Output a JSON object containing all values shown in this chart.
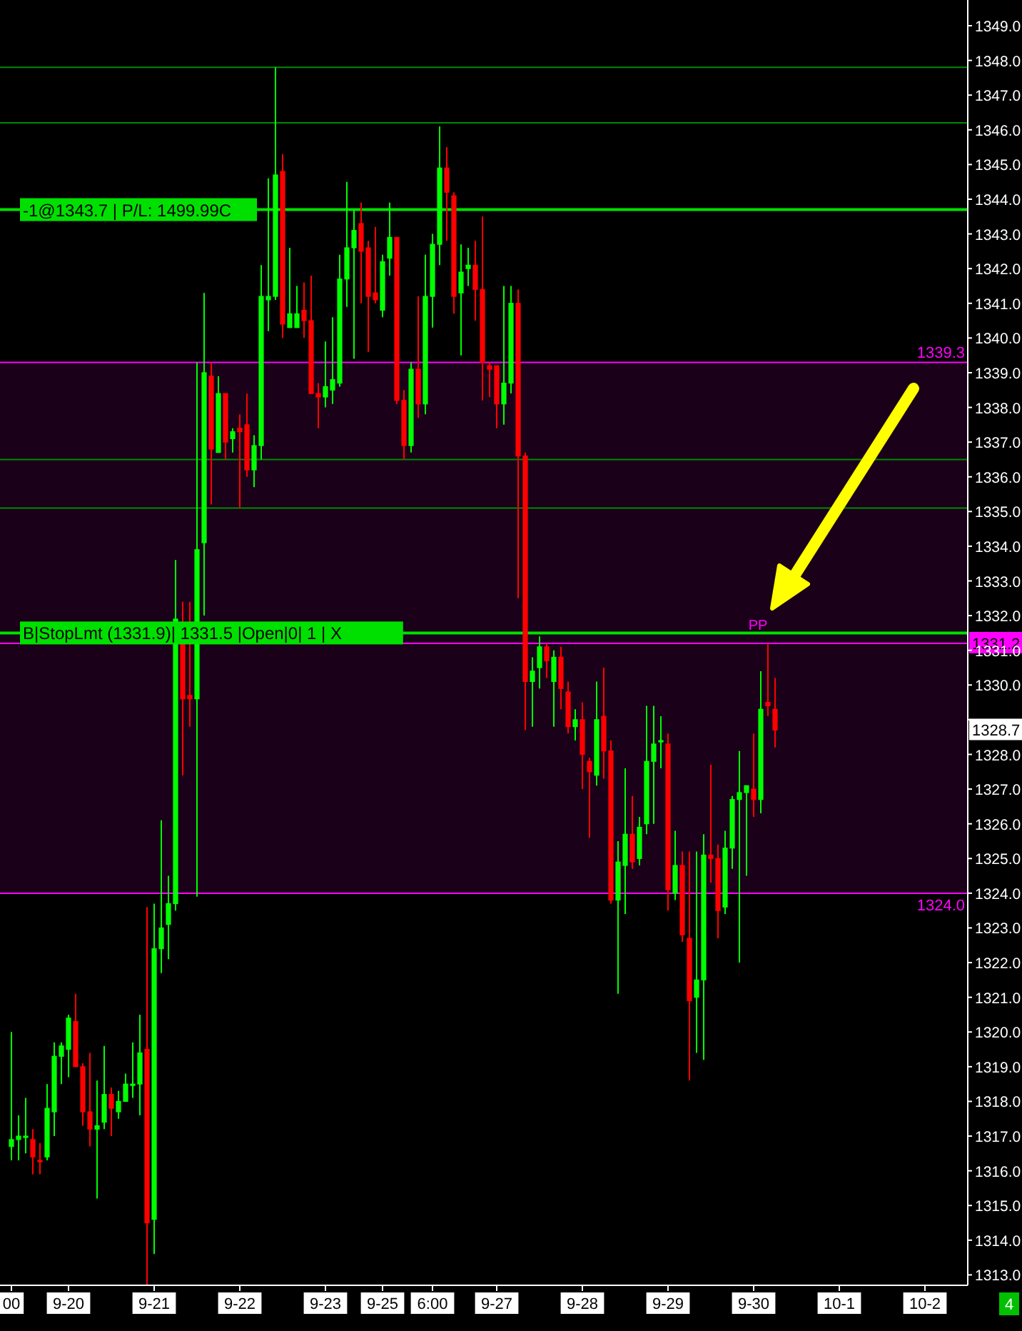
{
  "chart_data": {
    "type": "candlestick",
    "categories": [
      "00",
      null,
      null,
      null,
      null,
      null,
      null,
      null,
      "9-20",
      null,
      null,
      null,
      null,
      null,
      null,
      null,
      null,
      null,
      null,
      null,
      "9-21",
      null,
      null,
      null,
      null,
      null,
      null,
      null,
      null,
      null,
      null,
      null,
      "9-22",
      null,
      null,
      null,
      null,
      null,
      null,
      null,
      null,
      null,
      null,
      null,
      "9-23",
      null,
      null,
      null,
      null,
      null,
      null,
      null,
      "9-25",
      null,
      null,
      null,
      null,
      null,
      null,
      "6:00",
      null,
      null,
      null,
      null,
      null,
      null,
      null,
      null,
      "9-27",
      null,
      null,
      null,
      null,
      null,
      null,
      null,
      null,
      null,
      null,
      null,
      "9-28",
      null,
      null,
      null,
      null,
      null,
      null,
      null,
      null,
      null,
      null,
      null,
      "9-29",
      null,
      null,
      null,
      null,
      null,
      null,
      null,
      null,
      null,
      null,
      null,
      "9-30",
      null,
      null,
      null,
      null,
      null,
      null,
      null,
      null,
      null,
      null,
      null,
      "10-1",
      null,
      null,
      null,
      null,
      null,
      null,
      null,
      null,
      null,
      null,
      null,
      "10-2",
      null,
      null,
      null,
      null,
      null,
      null
    ],
    "ohlc": [
      [
        1316.7,
        1320.0,
        1316.3,
        1316.9
      ],
      [
        1316.9,
        1317.6,
        1316.3,
        1317.0
      ],
      [
        1317.0,
        1318.1,
        1316.5,
        1317.0
      ],
      [
        1316.9,
        1317.2,
        1315.9,
        1316.4
      ],
      [
        1316.3,
        1316.8,
        1315.9,
        1316.3
      ],
      [
        1316.4,
        1318.5,
        1316.3,
        1317.8
      ],
      [
        1317.7,
        1319.7,
        1317.0,
        1319.3
      ],
      [
        1319.3,
        1319.7,
        1318.5,
        1319.6
      ],
      [
        1319.5,
        1320.5,
        1318.7,
        1320.4
      ],
      [
        1320.3,
        1321.1,
        1319.0,
        1319.0
      ],
      [
        1319.0,
        1319.1,
        1317.3,
        1317.7
      ],
      [
        1317.7,
        1319.4,
        1316.7,
        1317.2
      ],
      [
        1317.2,
        1318.6,
        1315.2,
        1317.3
      ],
      [
        1317.4,
        1319.6,
        1317.2,
        1318.2
      ],
      [
        1318.2,
        1318.4,
        1317.0,
        1317.8
      ],
      [
        1317.7,
        1318.3,
        1317.5,
        1318.0
      ],
      [
        1318.0,
        1318.8,
        1318.0,
        1318.5
      ],
      [
        1318.5,
        1319.7,
        1318.1,
        1318.5
      ],
      [
        1318.5,
        1320.5,
        1317.6,
        1319.4
      ],
      [
        1319.5,
        1323.6,
        1312.7,
        1314.5
      ],
      [
        1314.6,
        1323.7,
        1313.6,
        1322.4
      ],
      [
        1322.4,
        1326.1,
        1321.7,
        1323.0
      ],
      [
        1323.1,
        1324.5,
        1322.1,
        1323.7
      ],
      [
        1323.7,
        1333.6,
        1323.5,
        1331.9
      ],
      [
        1331.8,
        1332.4,
        1327.4,
        1329.6
      ],
      [
        1329.7,
        1332.4,
        1328.8,
        1329.6
      ],
      [
        1329.6,
        1339.3,
        1323.9,
        1333.9
      ],
      [
        1334.1,
        1341.3,
        1332.0,
        1339.0
      ],
      [
        1338.9,
        1339.3,
        1335.2,
        1336.8
      ],
      [
        1336.7,
        1338.9,
        1336.7,
        1338.4
      ],
      [
        1338.4,
        1338.4,
        1336.5,
        1337.0
      ],
      [
        1337.1,
        1337.4,
        1336.7,
        1337.3
      ],
      [
        1337.4,
        1337.8,
        1335.1,
        1337.3
      ],
      [
        1337.5,
        1338.4,
        1336.0,
        1336.2
      ],
      [
        1336.2,
        1337.2,
        1335.7,
        1336.9
      ],
      [
        1336.9,
        1342.1,
        1336.5,
        1341.2
      ],
      [
        1341.1,
        1344.6,
        1340.2,
        1341.2
      ],
      [
        1341.2,
        1347.8,
        1341.1,
        1344.7
      ],
      [
        1344.8,
        1345.3,
        1340.0,
        1340.4
      ],
      [
        1340.3,
        1342.6,
        1340.3,
        1340.7
      ],
      [
        1340.3,
        1341.5,
        1340.3,
        1340.7
      ],
      [
        1340.8,
        1341.6,
        1340.0,
        1340.5
      ],
      [
        1340.5,
        1341.8,
        1338.4,
        1338.4
      ],
      [
        1338.4,
        1338.7,
        1337.4,
        1338.3
      ],
      [
        1338.3,
        1339.9,
        1338.0,
        1338.6
      ],
      [
        1338.5,
        1340.6,
        1338.1,
        1338.8
      ],
      [
        1338.7,
        1342.4,
        1338.6,
        1341.7
      ],
      [
        1341.7,
        1344.5,
        1340.9,
        1342.6
      ],
      [
        1342.6,
        1343.7,
        1339.4,
        1343.1
      ],
      [
        1343.3,
        1343.9,
        1341.0,
        1342.5
      ],
      [
        1342.6,
        1342.8,
        1339.6,
        1341.2
      ],
      [
        1341.3,
        1343.2,
        1341.0,
        1341.1
      ],
      [
        1340.8,
        1342.4,
        1340.6,
        1342.2
      ],
      [
        1342.3,
        1343.9,
        1341.8,
        1342.9
      ],
      [
        1342.9,
        1342.9,
        1338.1,
        1338.2
      ],
      [
        1338.2,
        1338.5,
        1336.5,
        1336.9
      ],
      [
        1336.9,
        1339.3,
        1336.7,
        1339.1
      ],
      [
        1339.1,
        1341.2,
        1337.7,
        1338.1
      ],
      [
        1338.1,
        1342.4,
        1337.8,
        1341.2
      ],
      [
        1341.2,
        1343.0,
        1340.3,
        1342.7
      ],
      [
        1342.7,
        1346.1,
        1342.1,
        1344.9
      ],
      [
        1344.9,
        1345.5,
        1342.8,
        1344.2
      ],
      [
        1344.1,
        1344.2,
        1340.7,
        1341.2
      ],
      [
        1341.3,
        1342.7,
        1339.5,
        1341.9
      ],
      [
        1342.0,
        1342.6,
        1341.5,
        1342.1
      ],
      [
        1342.1,
        1342.8,
        1340.5,
        1341.4
      ],
      [
        1341.4,
        1343.5,
        1338.2,
        1339.3
      ],
      [
        1339.2,
        1339.3,
        1338.3,
        1339.1
      ],
      [
        1339.2,
        1339.2,
        1337.4,
        1338.1
      ],
      [
        1338.1,
        1341.5,
        1337.5,
        1338.7
      ],
      [
        1338.7,
        1341.5,
        1338.4,
        1341.0
      ],
      [
        1341.0,
        1341.4,
        1332.5,
        1336.6
      ],
      [
        1336.6,
        1336.7,
        1328.7,
        1330.1
      ],
      [
        1330.1,
        1330.8,
        1328.8,
        1330.4
      ],
      [
        1330.5,
        1331.4,
        1329.9,
        1331.1
      ],
      [
        1331.1,
        1331.2,
        1330.2,
        1330.7
      ],
      [
        1330.1,
        1331.0,
        1328.8,
        1330.8
      ],
      [
        1330.8,
        1331.1,
        1329.3,
        1329.9
      ],
      [
        1329.8,
        1330.1,
        1328.6,
        1328.8
      ],
      [
        1328.8,
        1329.3,
        1328.4,
        1329.0
      ],
      [
        1329.0,
        1329.5,
        1327.0,
        1328.0
      ],
      [
        1327.8,
        1327.9,
        1325.6,
        1327.5
      ],
      [
        1327.4,
        1330.1,
        1327.1,
        1329.0
      ],
      [
        1329.1,
        1330.5,
        1327.3,
        1328.1
      ],
      [
        1328.1,
        1328.4,
        1323.7,
        1323.8
      ],
      [
        1323.8,
        1325.5,
        1321.1,
        1324.9
      ],
      [
        1324.8,
        1327.6,
        1323.4,
        1325.7
      ],
      [
        1325.7,
        1326.8,
        1324.7,
        1324.9
      ],
      [
        1325.0,
        1326.2,
        1324.8,
        1325.9
      ],
      [
        1326.0,
        1329.4,
        1325.7,
        1327.8
      ],
      [
        1327.8,
        1329.4,
        1326.0,
        1328.3
      ],
      [
        1328.4,
        1329.1,
        1327.6,
        1328.4
      ],
      [
        1328.3,
        1328.6,
        1323.5,
        1324.1
      ],
      [
        1324.0,
        1325.8,
        1323.8,
        1324.8
      ],
      [
        1324.8,
        1325.2,
        1322.6,
        1322.8
      ],
      [
        1322.7,
        1325.2,
        1318.6,
        1320.9
      ],
      [
        1321.0,
        1325.2,
        1319.4,
        1321.5
      ],
      [
        1321.5,
        1325.7,
        1319.2,
        1325.1
      ],
      [
        1325.1,
        1327.7,
        1324.3,
        1325.0
      ],
      [
        1325.0,
        1325.4,
        1322.7,
        1323.5
      ],
      [
        1323.6,
        1325.8,
        1323.4,
        1325.3
      ],
      [
        1325.3,
        1326.8,
        1324.7,
        1326.7
      ],
      [
        1326.7,
        1328.1,
        1322.0,
        1326.9
      ],
      [
        1326.9,
        1327.1,
        1324.5,
        1327.1
      ],
      [
        1327.0,
        1328.6,
        1326.2,
        1326.7
      ],
      [
        1326.7,
        1330.4,
        1326.3,
        1329.3
      ],
      [
        1329.5,
        1331.2,
        1329.1,
        1329.4
      ],
      [
        1329.3,
        1330.2,
        1328.2,
        1328.7
      ],
      null,
      null,
      null,
      null,
      null,
      null,
      null,
      null,
      null,
      null,
      null,
      null,
      null,
      null,
      null,
      null,
      null,
      null,
      null,
      null,
      null,
      null,
      null,
      null,
      null,
      null,
      null
    ],
    "colors": [
      "#00ff00",
      "#00ff00",
      "#00ff00",
      "#ff0000",
      "#ff0000",
      "#00ff00",
      "#00ff00",
      "#00ff00",
      "#00ff00",
      "#ff0000",
      "#ff0000",
      "#ff0000",
      "#00ff00",
      "#00ff00",
      "#ff0000",
      "#00ff00",
      "#00ff00",
      "#00ff00",
      "#00ff00",
      "#ff0000",
      "#00ff00",
      "#00ff00",
      "#00ff00",
      "#00ff00",
      "#ff0000",
      "#ff0000",
      "#00ff00",
      "#00ff00",
      "#ff0000",
      "#00ff00",
      "#ff0000",
      "#00ff00",
      "#ff0000",
      "#ff0000",
      "#00ff00",
      "#00ff00",
      "#00ff00",
      "#00ff00",
      "#ff0000",
      "#00ff00",
      "#00ff00",
      "#ff0000",
      "#ff0000",
      "#ff0000",
      "#00ff00",
      "#00ff00",
      "#00ff00",
      "#00ff00",
      "#00ff00",
      "#ff0000",
      "#ff0000",
      "#ff0000",
      "#00ff00",
      "#00ff00",
      "#ff0000",
      "#ff0000",
      "#00ff00",
      "#ff0000",
      "#00ff00",
      "#00ff00",
      "#00ff00",
      "#ff0000",
      "#ff0000",
      "#00ff00",
      "#00ff00",
      "#ff0000",
      "#ff0000",
      "#ff0000",
      "#ff0000",
      "#00ff00",
      "#00ff00",
      "#ff0000",
      "#ff0000",
      "#00ff00",
      "#00ff00",
      "#ff0000",
      "#00ff00",
      "#ff0000",
      "#ff0000",
      "#00ff00",
      "#ff0000",
      "#ff0000",
      "#00ff00",
      "#ff0000",
      "#ff0000",
      "#00ff00",
      "#00ff00",
      "#ff0000",
      "#00ff00",
      "#00ff00",
      "#00ff00",
      "#00ff00",
      "#ff0000",
      "#00ff00",
      "#ff0000",
      "#ff0000",
      "#00ff00",
      "#00ff00",
      "#ff0000",
      "#ff0000",
      "#00ff00",
      "#00ff00",
      "#00ff00",
      "#00ff00",
      "#ff0000",
      "#00ff00",
      "#ff0000",
      "#ff0000",
      null,
      null,
      null,
      null,
      null,
      null,
      null,
      null,
      null,
      null,
      null,
      null,
      null,
      null,
      null,
      null,
      null,
      null,
      null,
      null,
      null,
      null,
      null,
      null,
      null,
      null,
      null
    ],
    "ylim": [
      1312.7,
      1349.7
    ],
    "yticks": [
      {
        "value": 1313,
        "label": "1313.0"
      },
      {
        "value": 1314,
        "label": "1314.0"
      },
      {
        "value": 1315,
        "label": "1315.0"
      },
      {
        "value": 1316,
        "label": "1316.0"
      },
      {
        "value": 1317,
        "label": "1317.0"
      },
      {
        "value": 1318,
        "label": "1318.0"
      },
      {
        "value": 1319,
        "label": "1319.0"
      },
      {
        "value": 1320,
        "label": "1320.0"
      },
      {
        "value": 1321,
        "label": "1321.0"
      },
      {
        "value": 1322,
        "label": "1322.0"
      },
      {
        "value": 1323,
        "label": "1323.0"
      },
      {
        "value": 1324,
        "label": "1324.0"
      },
      {
        "value": 1325,
        "label": "1325.0"
      },
      {
        "value": 1326,
        "label": "1326.0"
      },
      {
        "value": 1327,
        "label": "1327.0"
      },
      {
        "value": 1328,
        "label": "1328.0"
      },
      {
        "value": 1329,
        "label": null
      },
      {
        "value": 1330,
        "label": "1330.0"
      },
      {
        "value": 1331,
        "label": "1331.0"
      },
      {
        "value": 1332,
        "label": "1332.0"
      },
      {
        "value": 1333,
        "label": "1333.0"
      },
      {
        "value": 1334,
        "label": "1334.0"
      },
      {
        "value": 1335,
        "label": "1335.0"
      },
      {
        "value": 1336,
        "label": "1336.0"
      },
      {
        "value": 1337,
        "label": "1337.0"
      },
      {
        "value": 1338,
        "label": "1338.0"
      },
      {
        "value": 1339,
        "label": "1339.0"
      },
      {
        "value": 1340,
        "label": "1340.0"
      },
      {
        "value": 1341,
        "label": "1341.0"
      },
      {
        "value": 1342,
        "label": "1342.0"
      },
      {
        "value": 1343,
        "label": "1343.0"
      },
      {
        "value": 1344,
        "label": "1344.0"
      },
      {
        "value": 1345,
        "label": "1345.0"
      },
      {
        "value": 1346,
        "label": "1346.0"
      },
      {
        "value": 1347,
        "label": "1347.0"
      },
      {
        "value": 1348,
        "label": "1348.0"
      },
      {
        "value": 1349,
        "label": "1349.0"
      }
    ],
    "bands": [
      {
        "axis": "y",
        "from": 1324.0,
        "to": 1339.3,
        "color": "#1a0019"
      }
    ],
    "ref_lines": [
      {
        "axis": "y",
        "value": 1339.3,
        "label": "1339.3",
        "color": "#ff00ff"
      },
      {
        "axis": "y",
        "value": 1324.0,
        "label": "1324.0",
        "color": "#ff00ff"
      },
      {
        "axis": "y",
        "value": 1331.2,
        "label": "1331.2",
        "color": "#ff00ff"
      },
      {
        "axis": "y",
        "value": 1343.7,
        "label": "-1@1343.7 | P/L: 1499.99C",
        "color": "#00e000"
      },
      {
        "axis": "y",
        "value": 1331.5,
        "label": "B|StopLmt (1331.9)| 1331.5 |Open|0| 1 | X",
        "color": "#00e000"
      },
      {
        "axis": "y",
        "value": 1347.8,
        "color": "#008a00"
      },
      {
        "axis": "y",
        "value": 1346.2,
        "color": "#008a00"
      },
      {
        "axis": "y",
        "value": 1336.5,
        "color": "#008a00"
      },
      {
        "axis": "y",
        "value": 1335.1,
        "color": "#008a00"
      }
    ],
    "annotations": [
      "PP",
      {
        "text": "1328.7",
        "y": 1328.7
      },
      "4"
    ]
  }
}
